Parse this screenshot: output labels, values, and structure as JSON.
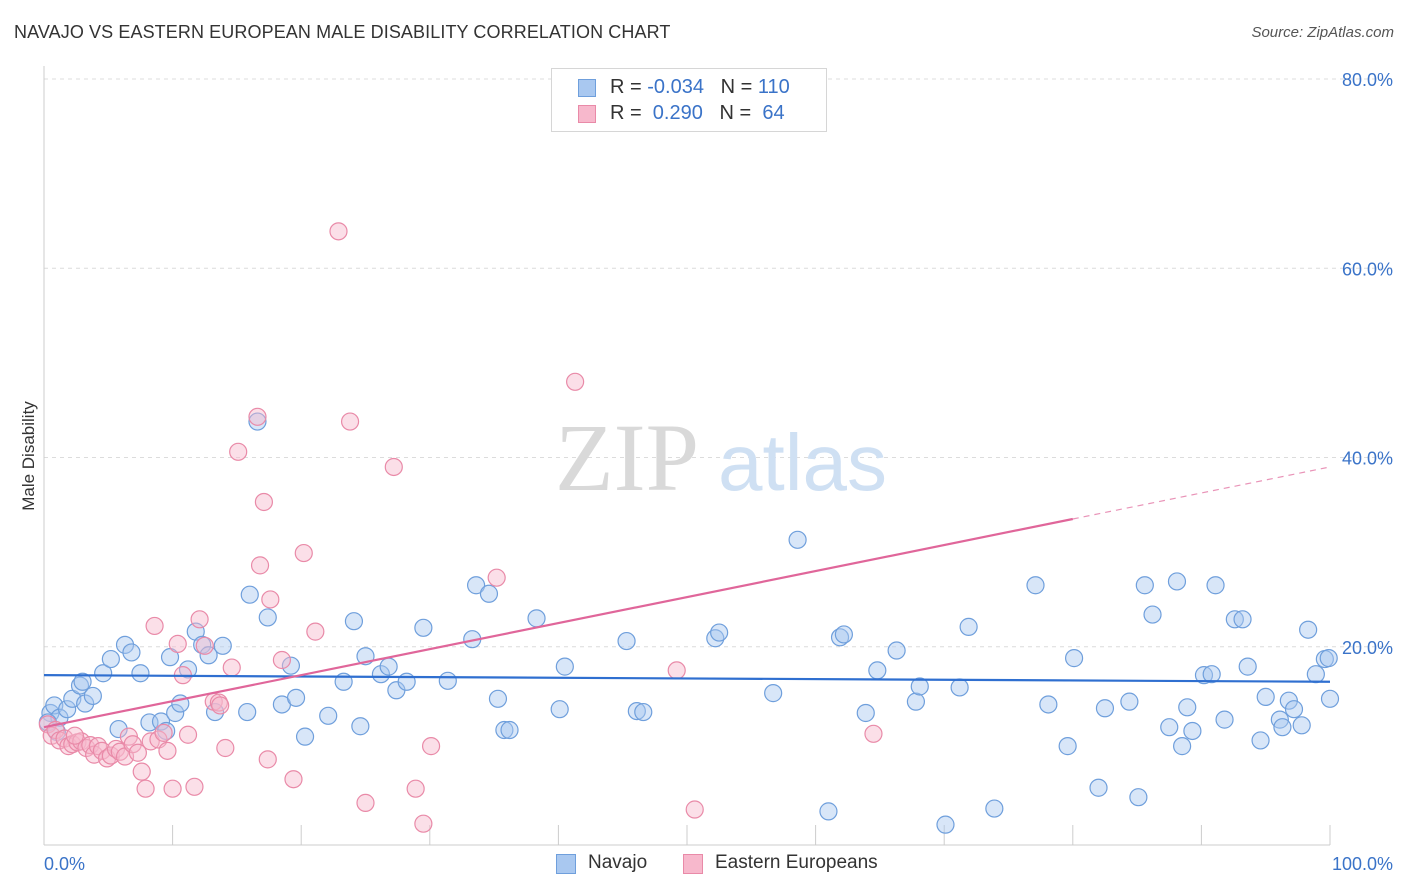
{
  "title": "NAVAJO VS EASTERN EUROPEAN MALE DISABILITY CORRELATION CHART",
  "source": "Source: ZipAtlas.com",
  "watermark": {
    "zip": "ZIP",
    "atlas": "atlas"
  },
  "legend": {
    "rows": [
      {
        "r_label": "R = ",
        "r_value": "-0.034",
        "n_label": "N = ",
        "n_value": "110",
        "color": "#a9c8f0",
        "border": "#6f9fdc"
      },
      {
        "r_label": "R = ",
        "r_value": " 0.290",
        "n_label": "N = ",
        "n_value": " 64",
        "color": "#f7b8cc",
        "border": "#e98aa8"
      }
    ]
  },
  "bottom_legend": [
    {
      "label": "Navajo",
      "color": "#a9c8f0",
      "border": "#6f9fdc"
    },
    {
      "label": "Eastern Europeans",
      "color": "#f7b8cc",
      "border": "#e98aa8"
    }
  ],
  "chart_data": {
    "type": "scatter",
    "title": "NAVAJO VS EASTERN EUROPEAN MALE DISABILITY CORRELATION CHART",
    "xlabel": "",
    "ylabel": "Male Disability",
    "xlim": [
      0,
      100
    ],
    "ylim": [
      0,
      80
    ],
    "x_tick_labels": [
      "0.0%",
      "100.0%"
    ],
    "y_ticks": [
      20,
      40,
      60,
      80
    ],
    "y_tick_labels": [
      "20.0%",
      "40.0%",
      "60.0%",
      "80.0%"
    ],
    "grid": true,
    "legend_position": "top-center",
    "series": [
      {
        "name": "Navajo",
        "color": "#a9c8f0",
        "edge": "#6f9fdc",
        "trend": {
          "x": [
            0,
            100
          ],
          "y": [
            17.0,
            16.3
          ],
          "color": "#2f6fd0"
        },
        "points": [
          [
            0.5,
            13.0
          ],
          [
            0.8,
            13.8
          ],
          [
            1.2,
            12.5
          ],
          [
            1.8,
            13.4
          ],
          [
            2.2,
            14.5
          ],
          [
            2.8,
            15.9
          ],
          [
            3.2,
            14.0
          ],
          [
            3.8,
            14.8
          ],
          [
            4.6,
            17.2
          ],
          [
            5.2,
            18.7
          ],
          [
            5.8,
            11.3
          ],
          [
            6.3,
            20.2
          ],
          [
            6.8,
            19.4
          ],
          [
            7.5,
            17.2
          ],
          [
            8.2,
            12.0
          ],
          [
            9.1,
            12.1
          ],
          [
            9.5,
            11.1
          ],
          [
            9.8,
            18.9
          ],
          [
            10.2,
            13.0
          ],
          [
            10.6,
            14.0
          ],
          [
            11.2,
            17.6
          ],
          [
            11.8,
            21.6
          ],
          [
            12.3,
            20.2
          ],
          [
            12.8,
            19.1
          ],
          [
            13.3,
            13.1
          ],
          [
            13.9,
            20.1
          ],
          [
            15.8,
            13.1
          ],
          [
            16.0,
            25.5
          ],
          [
            16.6,
            43.8
          ],
          [
            17.4,
            23.1
          ],
          [
            18.5,
            13.9
          ],
          [
            19.2,
            18.0
          ],
          [
            19.6,
            14.6
          ],
          [
            20.3,
            10.5
          ],
          [
            22.1,
            12.7
          ],
          [
            23.3,
            16.3
          ],
          [
            24.1,
            22.7
          ],
          [
            24.6,
            11.6
          ],
          [
            25.0,
            19.0
          ],
          [
            26.2,
            17.1
          ],
          [
            26.8,
            17.9
          ],
          [
            27.4,
            15.4
          ],
          [
            28.2,
            16.3
          ],
          [
            29.5,
            22.0
          ],
          [
            31.4,
            16.4
          ],
          [
            33.3,
            20.8
          ],
          [
            33.6,
            26.5
          ],
          [
            34.6,
            25.6
          ],
          [
            35.3,
            14.5
          ],
          [
            35.8,
            11.2
          ],
          [
            36.2,
            11.2
          ],
          [
            38.3,
            23.0
          ],
          [
            40.1,
            13.4
          ],
          [
            40.5,
            17.9
          ],
          [
            45.3,
            20.6
          ],
          [
            46.1,
            13.2
          ],
          [
            46.6,
            13.1
          ],
          [
            52.2,
            20.9
          ],
          [
            52.5,
            21.5
          ],
          [
            56.7,
            15.1
          ],
          [
            58.6,
            31.3
          ],
          [
            61.0,
            2.6
          ],
          [
            61.9,
            21.0
          ],
          [
            62.2,
            21.3
          ],
          [
            63.9,
            13.0
          ],
          [
            64.8,
            17.5
          ],
          [
            66.3,
            19.6
          ],
          [
            67.8,
            14.2
          ],
          [
            68.1,
            15.8
          ],
          [
            70.1,
            1.2
          ],
          [
            71.2,
            15.7
          ],
          [
            71.9,
            22.1
          ],
          [
            73.9,
            2.9
          ],
          [
            77.1,
            26.5
          ],
          [
            78.1,
            13.9
          ],
          [
            79.6,
            9.5
          ],
          [
            80.1,
            18.8
          ],
          [
            82.0,
            5.1
          ],
          [
            82.5,
            13.5
          ],
          [
            84.4,
            14.2
          ],
          [
            85.1,
            4.1
          ],
          [
            85.6,
            26.5
          ],
          [
            86.2,
            23.4
          ],
          [
            87.5,
            11.5
          ],
          [
            88.1,
            26.9
          ],
          [
            88.5,
            9.5
          ],
          [
            88.9,
            13.6
          ],
          [
            89.3,
            11.1
          ],
          [
            90.2,
            17.0
          ],
          [
            90.8,
            17.1
          ],
          [
            91.1,
            26.5
          ],
          [
            91.8,
            12.3
          ],
          [
            92.6,
            22.9
          ],
          [
            93.2,
            22.9
          ],
          [
            93.6,
            17.9
          ],
          [
            94.6,
            10.1
          ],
          [
            95.0,
            14.7
          ],
          [
            96.1,
            12.3
          ],
          [
            96.3,
            11.5
          ],
          [
            96.8,
            14.3
          ],
          [
            97.2,
            13.4
          ],
          [
            97.8,
            11.7
          ],
          [
            98.3,
            21.8
          ],
          [
            98.9,
            17.1
          ],
          [
            99.6,
            18.7
          ],
          [
            99.9,
            18.8
          ],
          [
            100.0,
            14.5
          ],
          [
            0.3,
            12.0
          ],
          [
            1.0,
            11.0
          ],
          [
            3.0,
            16.3
          ]
        ]
      },
      {
        "name": "Eastern Europeans",
        "color": "#f7b8cc",
        "edge": "#e98aa8",
        "trend": {
          "x": [
            0,
            80
          ],
          "y": [
            11.5,
            33.5
          ],
          "dash_to": [
            100,
            39.0
          ],
          "color": "#e0669a"
        },
        "points": [
          [
            0.3,
            11.8
          ],
          [
            0.6,
            10.6
          ],
          [
            0.9,
            11.2
          ],
          [
            1.2,
            10.1
          ],
          [
            1.6,
            10.3
          ],
          [
            1.9,
            9.5
          ],
          [
            2.2,
            9.7
          ],
          [
            2.6,
            9.9
          ],
          [
            2.9,
            10.0
          ],
          [
            3.3,
            9.3
          ],
          [
            3.6,
            9.6
          ],
          [
            3.9,
            8.6
          ],
          [
            4.2,
            9.5
          ],
          [
            4.5,
            9.0
          ],
          [
            4.9,
            8.2
          ],
          [
            5.2,
            8.5
          ],
          [
            5.6,
            9.2
          ],
          [
            5.9,
            8.9
          ],
          [
            6.3,
            8.4
          ],
          [
            6.6,
            10.5
          ],
          [
            6.9,
            9.7
          ],
          [
            7.3,
            8.8
          ],
          [
            7.6,
            6.8
          ],
          [
            7.9,
            5.0
          ],
          [
            8.3,
            10.0
          ],
          [
            8.6,
            22.2
          ],
          [
            8.9,
            10.2
          ],
          [
            9.3,
            10.9
          ],
          [
            9.6,
            9.0
          ],
          [
            10.0,
            5.0
          ],
          [
            10.4,
            20.3
          ],
          [
            10.8,
            17.0
          ],
          [
            11.2,
            10.7
          ],
          [
            11.7,
            5.2
          ],
          [
            12.1,
            22.9
          ],
          [
            12.5,
            20.1
          ],
          [
            13.2,
            14.2
          ],
          [
            13.6,
            14.1
          ],
          [
            14.1,
            9.3
          ],
          [
            14.6,
            17.8
          ],
          [
            15.1,
            40.6
          ],
          [
            16.6,
            44.3
          ],
          [
            17.1,
            35.3
          ],
          [
            16.8,
            28.6
          ],
          [
            17.4,
            8.1
          ],
          [
            17.6,
            25.0
          ],
          [
            18.5,
            18.6
          ],
          [
            19.4,
            6.0
          ],
          [
            20.2,
            29.9
          ],
          [
            21.1,
            21.6
          ],
          [
            22.9,
            63.9
          ],
          [
            23.8,
            43.8
          ],
          [
            25.0,
            3.5
          ],
          [
            27.2,
            39.0
          ],
          [
            28.9,
            5.0
          ],
          [
            29.5,
            1.3
          ],
          [
            30.1,
            9.5
          ],
          [
            35.2,
            27.3
          ],
          [
            41.3,
            48.0
          ],
          [
            49.2,
            17.5
          ],
          [
            50.6,
            2.8
          ],
          [
            64.5,
            10.8
          ],
          [
            13.7,
            13.8
          ],
          [
            2.4,
            10.6
          ]
        ]
      }
    ]
  }
}
